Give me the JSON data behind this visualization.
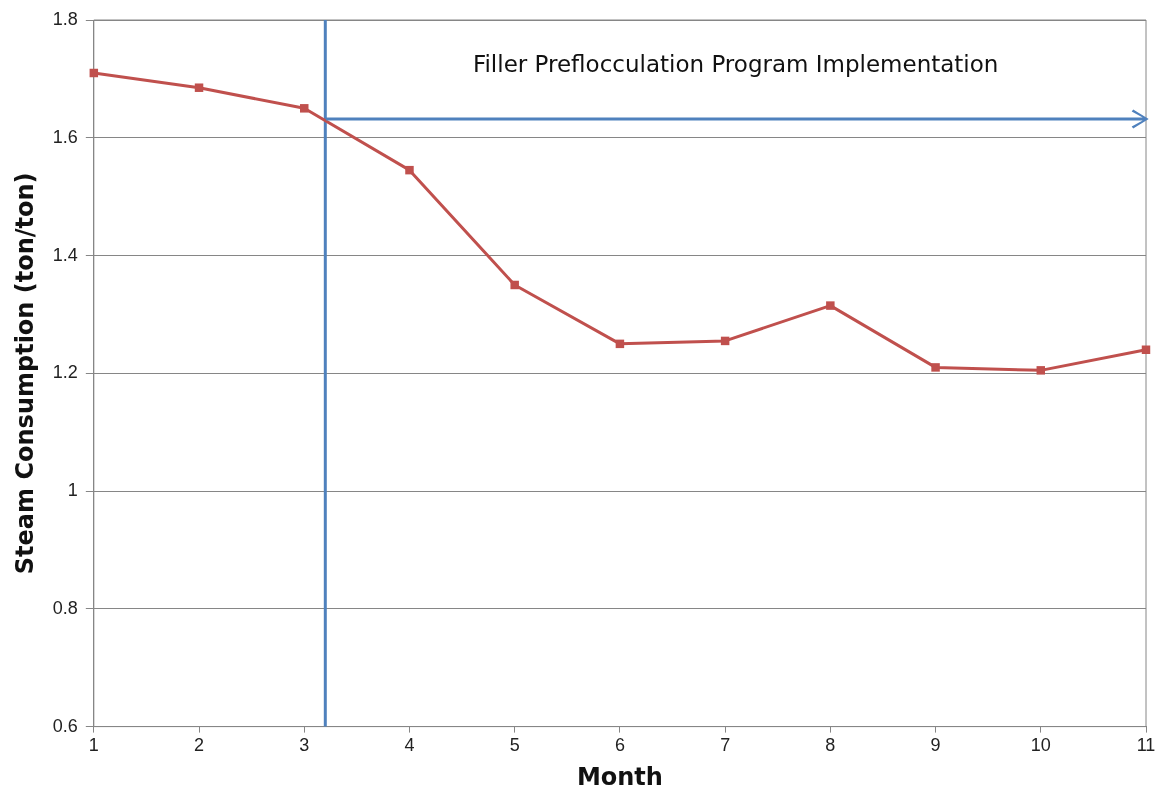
{
  "chart_data": {
    "type": "line",
    "xlabel": "Month",
    "ylabel": "Steam Consumption (ton/ton)",
    "x": [
      1,
      2,
      3,
      4,
      5,
      6,
      7,
      8,
      9,
      10,
      11
    ],
    "series": [
      {
        "color": "#c0504d",
        "values": [
          1.71,
          1.685,
          1.65,
          1.545,
          1.35,
          1.25,
          1.255,
          1.315,
          1.21,
          1.205,
          1.24
        ]
      }
    ],
    "xlim": [
      1,
      11
    ],
    "xticks": [
      1,
      2,
      3,
      4,
      5,
      6,
      7,
      8,
      9,
      10,
      11
    ],
    "ylim": [
      0.6,
      1.8
    ],
    "yticks": [
      0.6,
      0.8,
      1,
      1.2,
      1.4,
      1.6,
      1.8
    ],
    "grid": "y",
    "marker": "square",
    "line_style": "solid",
    "legend": false,
    "ref_lines": [
      {
        "axis": "x",
        "value": 3.2,
        "color": "#4f81bd"
      }
    ],
    "annotations": [
      "Filler Preflocculation Program Implementation"
    ]
  }
}
